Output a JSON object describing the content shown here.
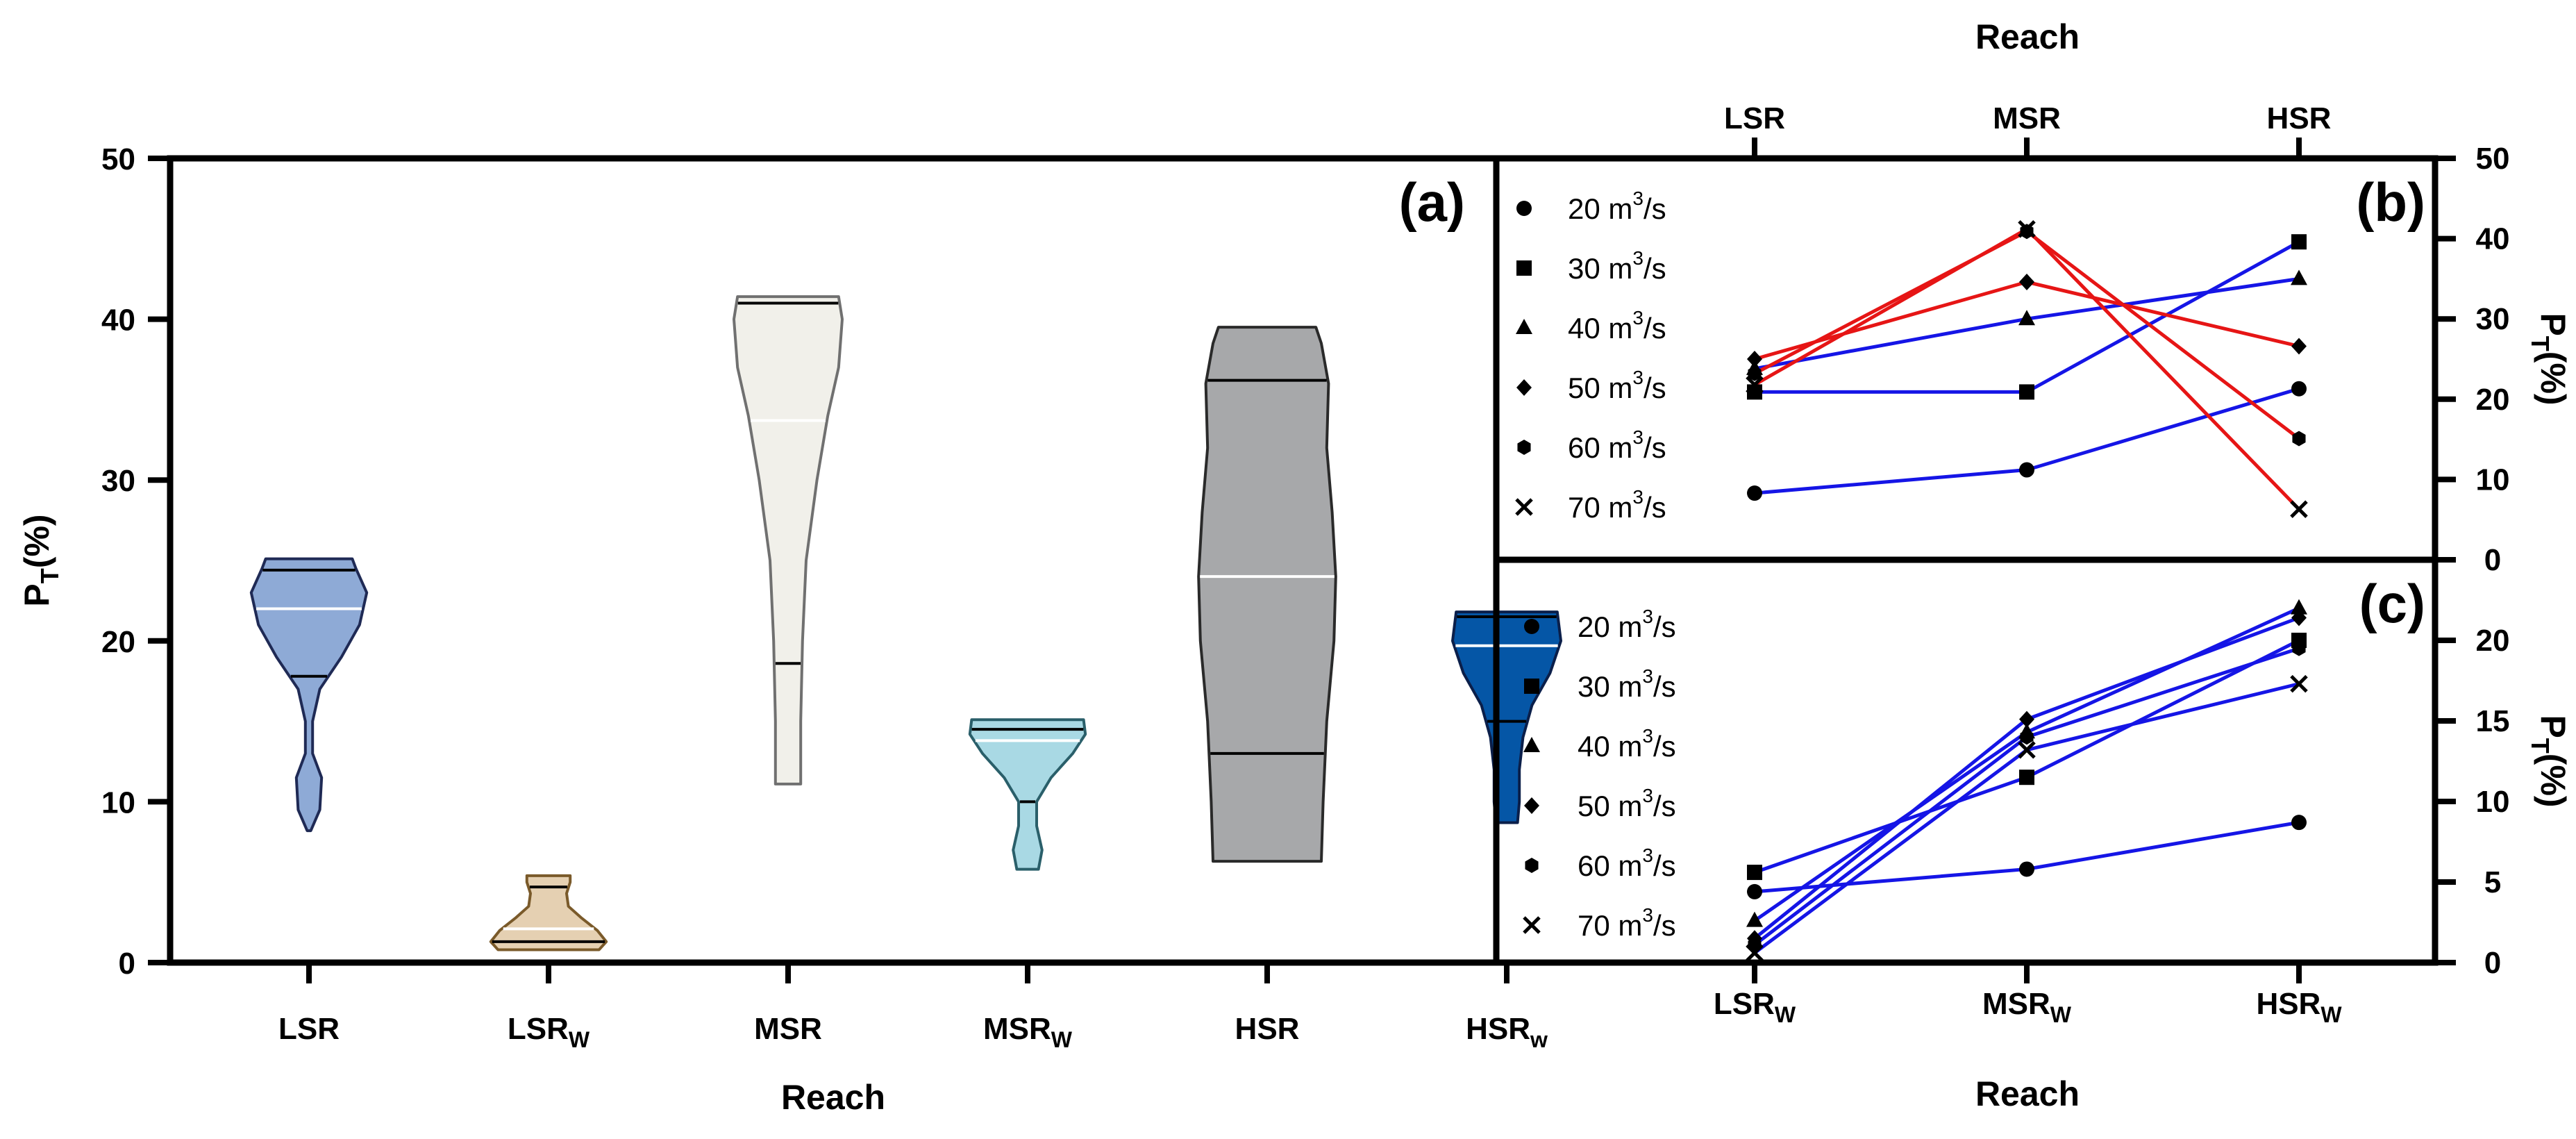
{
  "chart_data": [
    {
      "panel": "(a)",
      "type": "violin",
      "xlabel": "Reach",
      "ylabel": "P_T(%)",
      "ylim": [
        0,
        50
      ],
      "yticks": [
        0,
        10,
        20,
        30,
        40,
        50
      ],
      "categories": [
        {
          "name": "LSR",
          "sub": "",
          "fill": "#8eaad6",
          "stroke": "#1f2a55",
          "min": 8.2,
          "max": 25.1,
          "median": 22,
          "q1": 17.8,
          "q3": 24.4,
          "profile": [
            [
              8.2,
              1
            ],
            [
              9.5,
              6
            ],
            [
              11.5,
              7
            ],
            [
              13,
              2
            ],
            [
              15,
              2
            ],
            [
              17,
              6
            ],
            [
              19,
              18
            ],
            [
              21,
              28
            ],
            [
              23,
              32
            ],
            [
              24.5,
              26
            ],
            [
              25.1,
              24
            ]
          ]
        },
        {
          "name": "LSR",
          "sub": "W",
          "fill": "#e5d0b2",
          "stroke": "#7a5a2a",
          "min": 0.8,
          "max": 5.4,
          "median": 2.1,
          "q1": 1.3,
          "q3": 4.7,
          "profile": [
            [
              0.8,
              28
            ],
            [
              1.3,
              32
            ],
            [
              2,
              27
            ],
            [
              2.8,
              18
            ],
            [
              3.5,
              11
            ],
            [
              4.3,
              10
            ],
            [
              5,
              12
            ],
            [
              5.4,
              12
            ]
          ]
        },
        {
          "name": "MSR",
          "sub": "",
          "fill": "#f1f0ea",
          "stroke": "#707070",
          "min": 11.1,
          "max": 41.4,
          "median": 33.7,
          "q1": 18.6,
          "q3": 41,
          "profile": [
            [
              11.1,
              7
            ],
            [
              15,
              7
            ],
            [
              20,
              8
            ],
            [
              25,
              10
            ],
            [
              30,
              16
            ],
            [
              34,
              22
            ],
            [
              37,
              28
            ],
            [
              40,
              30
            ],
            [
              41.4,
              28
            ]
          ]
        },
        {
          "name": "MSR",
          "sub": "W",
          "fill": "#a9d9e4",
          "stroke": "#2a5f6a",
          "min": 5.8,
          "max": 15.1,
          "median": 13.8,
          "q1": 10,
          "q3": 14.5,
          "profile": [
            [
              5.8,
              6
            ],
            [
              7,
              8
            ],
            [
              8.5,
              5
            ],
            [
              10,
              5
            ],
            [
              11.5,
              13
            ],
            [
              13,
              25
            ],
            [
              14.2,
              32
            ],
            [
              15.1,
              31
            ]
          ]
        },
        {
          "name": "HSR",
          "sub": "",
          "fill": "#a7a8aa",
          "stroke": "#2a2a2a",
          "min": 6.3,
          "max": 39.5,
          "median": 24,
          "q1": 13,
          "q3": 36.2,
          "profile": [
            [
              6.3,
              30
            ],
            [
              10,
              31
            ],
            [
              15,
              33
            ],
            [
              20,
              37
            ],
            [
              24,
              38
            ],
            [
              28,
              36
            ],
            [
              32,
              33
            ],
            [
              36,
              34
            ],
            [
              38.5,
              30
            ],
            [
              39.5,
              27
            ]
          ]
        },
        {
          "name": "HSR",
          "sub": "w",
          "fill": "#0556a6",
          "stroke": "#0b1f4a",
          "min": 8.7,
          "max": 21.8,
          "median": 19.7,
          "q1": 15,
          "q3": 21.5,
          "profile": [
            [
              8.7,
              6
            ],
            [
              10,
              7
            ],
            [
              12,
              7
            ],
            [
              14,
              9
            ],
            [
              16,
              14
            ],
            [
              18,
              24
            ],
            [
              20,
              30
            ],
            [
              21.8,
              28
            ]
          ]
        }
      ]
    },
    {
      "panel": "(b)",
      "type": "line",
      "xlabel_top": "Reach",
      "categories": [
        "LSR",
        "MSR",
        "HSR"
      ],
      "ylabel": "P_T(%)",
      "ylim": [
        0,
        50
      ],
      "yticks": [
        0,
        10,
        20,
        30,
        40,
        50
      ],
      "series": [
        {
          "name": "20 m³/s",
          "legend_main": "20 m",
          "legend_sup": "3",
          "legend_tail": "/s",
          "marker": "circle",
          "color": "#1515e6",
          "values": [
            8.3,
            11.2,
            21.3
          ]
        },
        {
          "name": "30 m³/s",
          "legend_main": "30 m",
          "legend_sup": "3",
          "legend_tail": "/s",
          "marker": "square",
          "color": "#1515e6",
          "values": [
            20.9,
            20.9,
            39.6
          ]
        },
        {
          "name": "40 m³/s",
          "legend_main": "40 m",
          "legend_sup": "3",
          "legend_tail": "/s",
          "marker": "triangle",
          "color": "#1515e6",
          "values": [
            23.8,
            30,
            35
          ]
        },
        {
          "name": "50 m³/s",
          "legend_main": "50 m",
          "legend_sup": "3",
          "legend_tail": "/s",
          "marker": "diamond",
          "color": "#e61515",
          "values": [
            25,
            34.6,
            26.6
          ]
        },
        {
          "name": "60 m³/s",
          "legend_main": "60 m",
          "legend_sup": "3",
          "legend_tail": "/s",
          "marker": "hexagon",
          "color": "#e61515",
          "values": [
            23.2,
            40.9,
            15.1
          ]
        },
        {
          "name": "70 m³/s",
          "legend_main": "70 m",
          "legend_sup": "3",
          "legend_tail": "/s",
          "marker": "cross",
          "color": "#e61515",
          "values": [
            21.8,
            41.2,
            6.3
          ]
        }
      ]
    },
    {
      "panel": "(c)",
      "type": "line",
      "xlabel": "Reach",
      "categories": [
        "LSR_W",
        "MSR_W",
        "HSR_W"
      ],
      "cat_main": [
        "LSR",
        "MSR",
        "HSR"
      ],
      "cat_sub": [
        "W",
        "W",
        "W"
      ],
      "ylabel": "P_T(%)",
      "ylim": [
        0,
        25
      ],
      "yticks": [
        0,
        5,
        10,
        15,
        20
      ],
      "series": [
        {
          "name": "20 m³/s",
          "legend_main": "20 m",
          "legend_sup": "3",
          "legend_tail": "/s",
          "marker": "circle",
          "color": "#1515e6",
          "values": [
            4.4,
            5.8,
            8.7
          ]
        },
        {
          "name": "30 m³/s",
          "legend_main": "30 m",
          "legend_sup": "3",
          "legend_tail": "/s",
          "marker": "square",
          "color": "#1515e6",
          "values": [
            5.6,
            11.5,
            20
          ]
        },
        {
          "name": "40 m³/s",
          "legend_main": "40 m",
          "legend_sup": "3",
          "legend_tail": "/s",
          "marker": "triangle",
          "color": "#1515e6",
          "values": [
            2.6,
            14.3,
            22
          ]
        },
        {
          "name": "50 m³/s",
          "legend_main": "50 m",
          "legend_sup": "3",
          "legend_tail": "/s",
          "marker": "diamond",
          "color": "#1515e6",
          "values": [
            1.5,
            15.1,
            21.4
          ]
        },
        {
          "name": "60 m³/s",
          "legend_main": "60 m",
          "legend_sup": "3",
          "legend_tail": "/s",
          "marker": "hexagon",
          "color": "#1515e6",
          "values": [
            1.1,
            14,
            19.5
          ]
        },
        {
          "name": "70 m³/s",
          "legend_main": "70 m",
          "legend_sup": "3",
          "legend_tail": "/s",
          "marker": "cross",
          "color": "#1515e6",
          "values": [
            0.6,
            13.2,
            17.3
          ]
        }
      ]
    }
  ]
}
